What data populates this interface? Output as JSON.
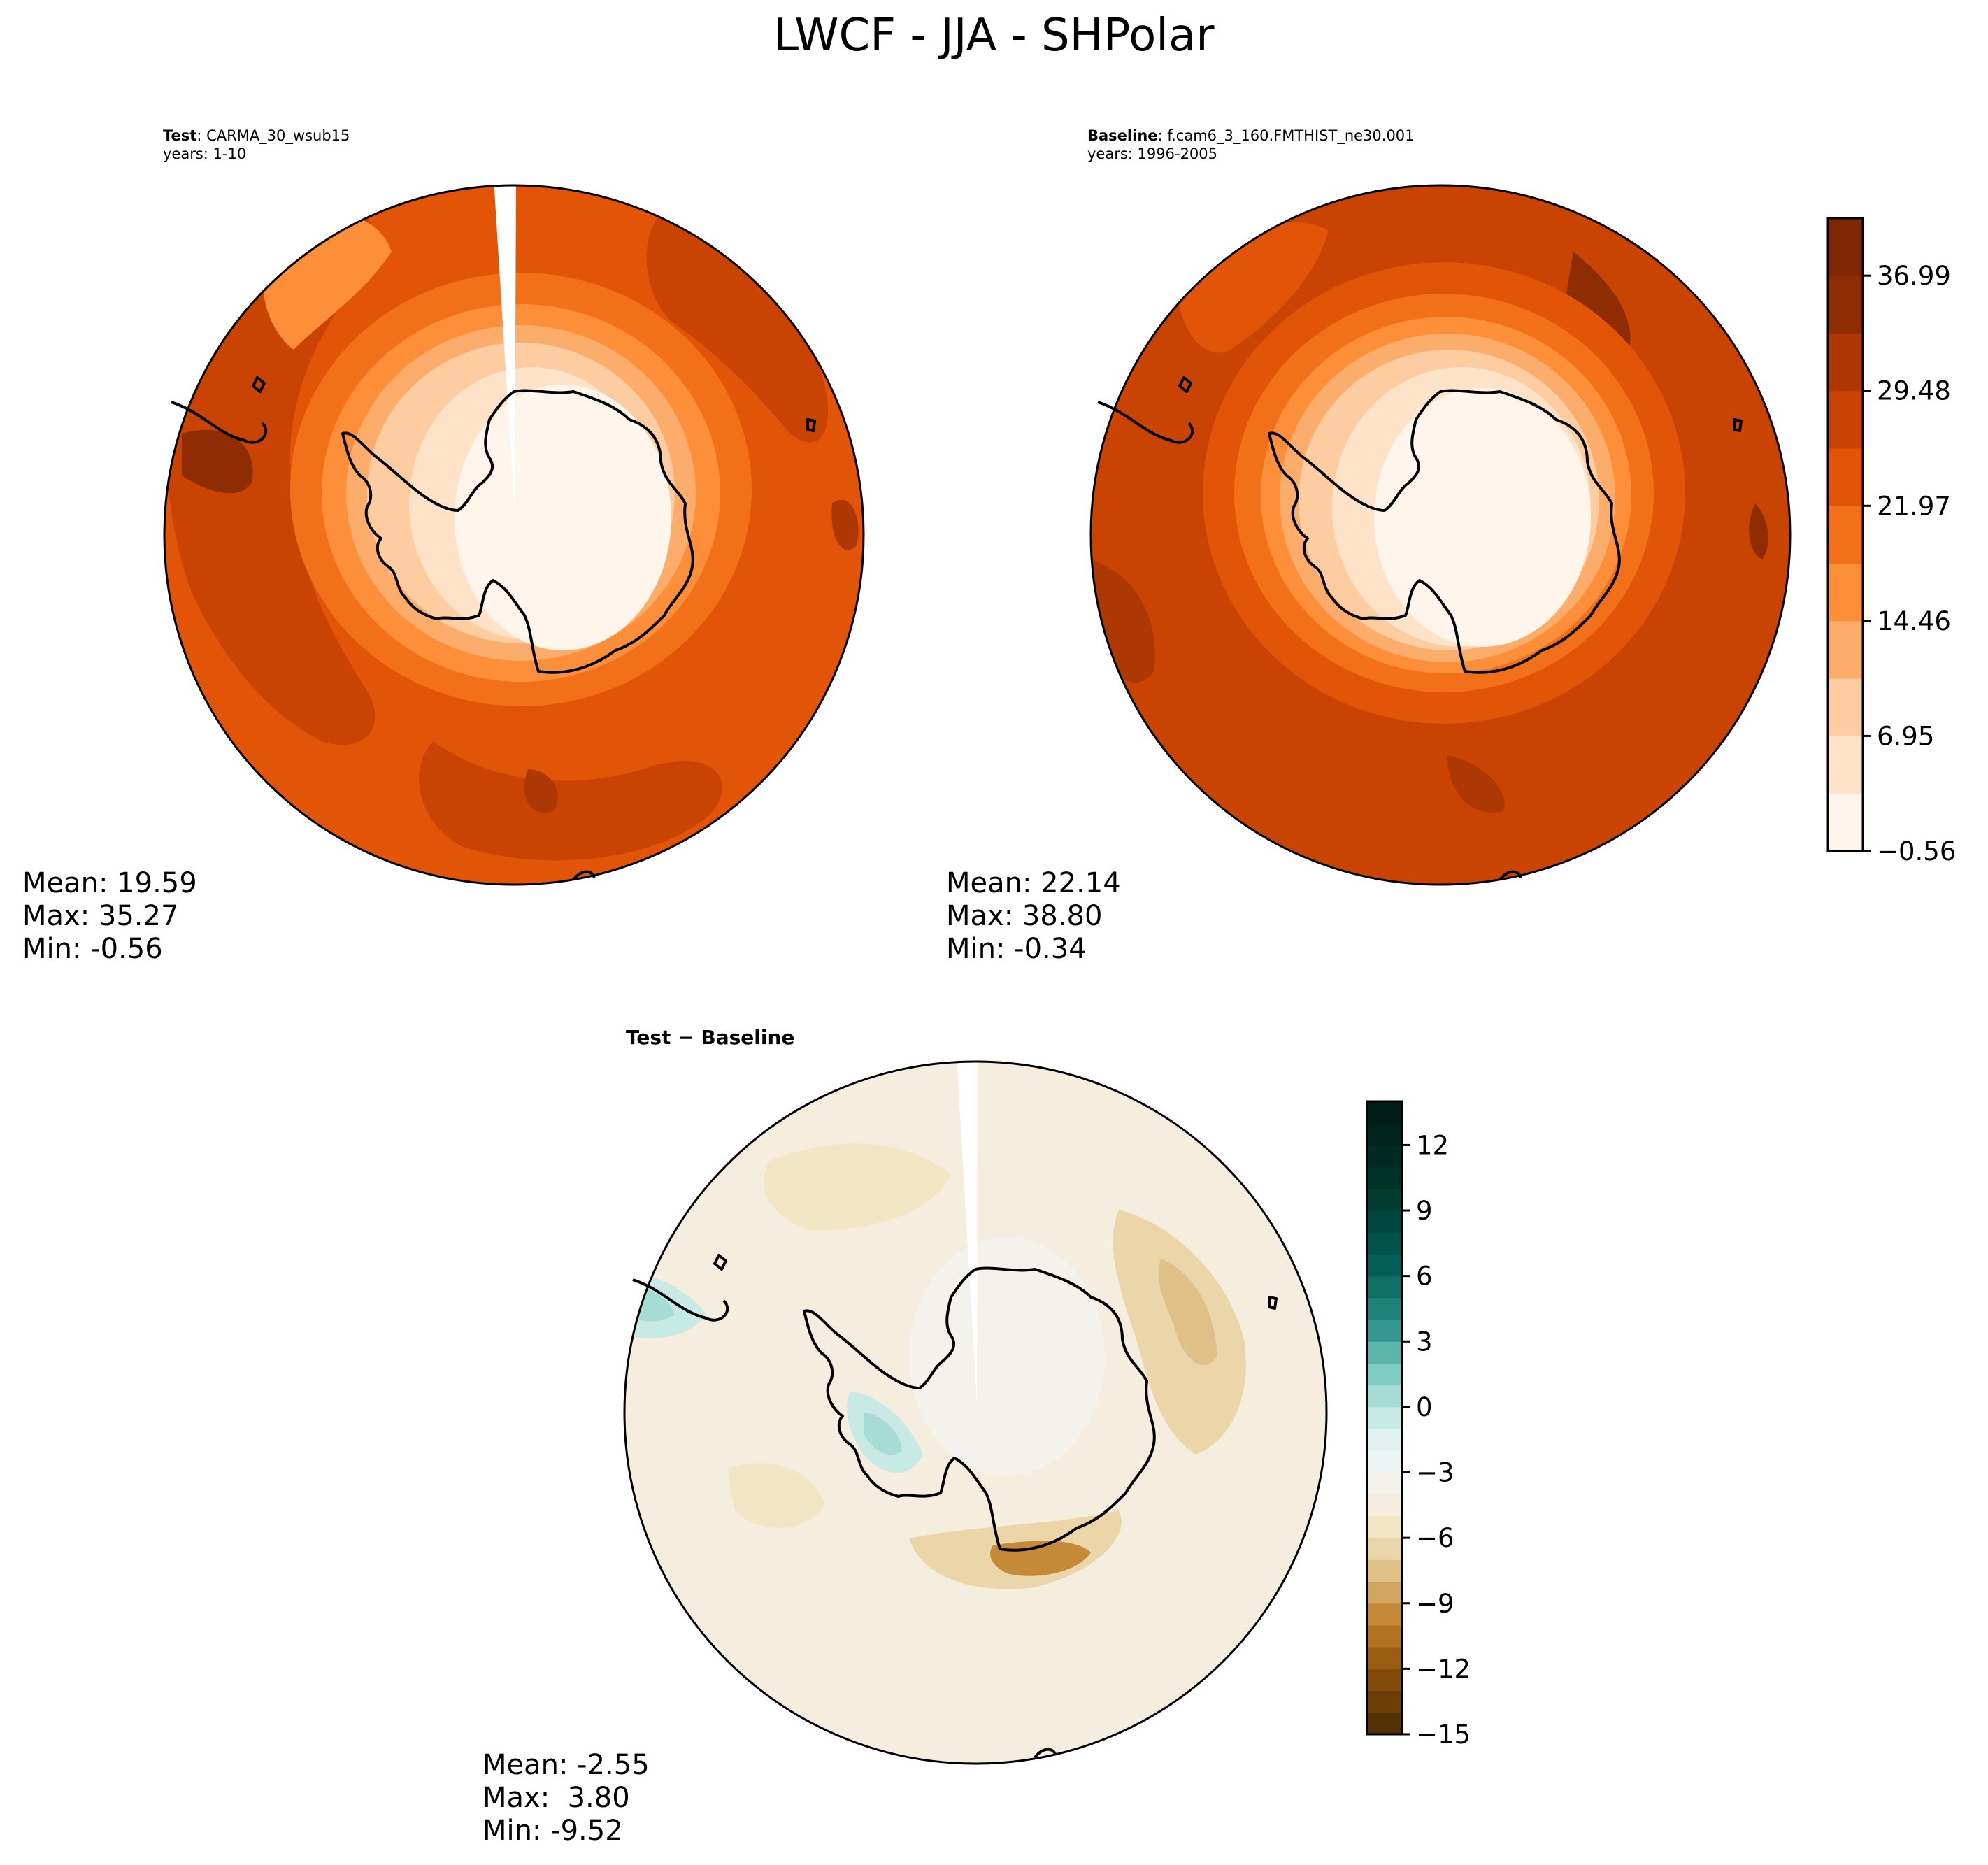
{
  "figure": {
    "title": "LWCF - JJA - SHPolar"
  },
  "panels": {
    "test": {
      "label": "Test",
      "case": ": CARMA_30_wsub15",
      "years": "years: 1-10",
      "mean": "Mean: 19.59",
      "max": "Max: 35.27",
      "min": "Min: -0.56"
    },
    "baseline": {
      "label": "Baseline",
      "case": ": f.cam6_3_160.FMTHIST_ne30.001",
      "years": "years: 1996-2005",
      "mean": "Mean: 22.14",
      "max": "Max: 38.80",
      "min": "Min: -0.34"
    },
    "diff": {
      "title": "Test − Baseline",
      "mean": "Mean: -2.55",
      "max": "Max:  3.80",
      "min": "Min: -9.52"
    }
  },
  "chart_data": [
    {
      "type": "heatmap",
      "projection": "south-polar-stereographic",
      "panel": "test",
      "variable": "LWCF",
      "season": "JJA",
      "colormap": "Oranges",
      "stats": {
        "mean": 19.59,
        "max": 35.27,
        "min": -0.56
      }
    },
    {
      "type": "heatmap",
      "projection": "south-polar-stereographic",
      "panel": "baseline",
      "variable": "LWCF",
      "season": "JJA",
      "colormap": "Oranges",
      "stats": {
        "mean": 22.14,
        "max": 38.8,
        "min": -0.34
      }
    },
    {
      "type": "heatmap",
      "projection": "south-polar-stereographic",
      "panel": "test-minus-baseline",
      "variable": "LWCF difference",
      "colormap": "BrBG",
      "stats": {
        "mean": -2.55,
        "max": 3.8,
        "min": -9.52
      }
    }
  ],
  "colorbars": {
    "main": {
      "range": [
        -0.56,
        40.74
      ],
      "levels": [
        -0.56,
        3.195,
        6.95,
        10.705,
        14.46,
        18.215,
        21.97,
        25.725,
        29.48,
        33.235,
        36.99,
        40.745
      ],
      "tick_values": [
        -0.56,
        6.95,
        14.46,
        21.97,
        29.48,
        36.99
      ],
      "tick_labels": [
        "−0.56",
        "6.95",
        "14.46",
        "21.97",
        "29.48",
        "36.99"
      ],
      "colors": [
        "#fff5eb",
        "#fee3c8",
        "#fdcda1",
        "#fdad6b",
        "#fd8f3b",
        "#f3701b",
        "#e25508",
        "#c94302",
        "#ad3803",
        "#8e2d04",
        "#7f2704"
      ]
    },
    "diff": {
      "range": [
        -15,
        14
      ],
      "levels": [
        -15,
        -14,
        -13,
        -12,
        -11,
        -10,
        -9,
        -8,
        -7,
        -6,
        -5,
        -4,
        -3,
        -2,
        -1,
        0,
        1,
        2,
        3,
        4,
        5,
        6,
        7,
        8,
        9,
        10,
        11,
        12,
        13,
        14
      ],
      "tick_values": [
        -15,
        -12,
        -9,
        -6,
        -3,
        0,
        3,
        6,
        9,
        12
      ],
      "tick_labels": [
        "−15",
        "−12",
        "−9",
        "−6",
        "−3",
        "0",
        "3",
        "6",
        "9",
        "12"
      ],
      "colors": [
        "#543005",
        "#6b3d07",
        "#824b09",
        "#995d12",
        "#b07220",
        "#c48a38",
        "#d2a660",
        "#dfc187",
        "#ebd6a9",
        "#f3e6c5",
        "#f5eedf",
        "#f3f2ec",
        "#ecf4f3",
        "#e0f1ef",
        "#c7eae5",
        "#a6dcd3",
        "#80cdc1",
        "#5bb5a8",
        "#35978f",
        "#1e8279",
        "#0f6f65",
        "#035f55",
        "#01524a",
        "#01463e",
        "#003c30",
        "#003228",
        "#002a22",
        "#00231c",
        "#001c16"
      ]
    }
  },
  "icons": {
    "coastline": "antarctica-coastline-icon"
  }
}
